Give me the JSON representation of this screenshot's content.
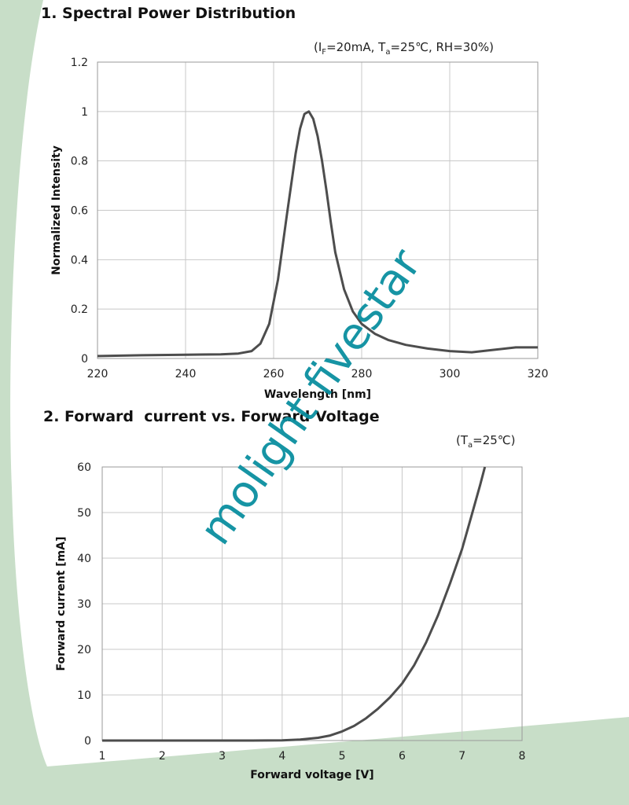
{
  "chart_data": [
    {
      "type": "line",
      "title": "1. Spectral Power Distribution",
      "conditions": {
        "i_label": "I",
        "i_sub": "F",
        "i_val": "=20mA, ",
        "t_label": "T",
        "t_sub": "a",
        "t_val": "=25℃, RH=30%"
      },
      "xlabel": "Wavelength [nm]",
      "ylabel": "Normalized Intensity",
      "xlim": [
        220,
        320
      ],
      "ylim": [
        0,
        1.2
      ],
      "x_ticks": [
        "220",
        "240",
        "260",
        "280",
        "300",
        "320"
      ],
      "y_ticks": [
        "0",
        "0.2",
        "0.4",
        "0.6",
        "0.8",
        "1",
        "1.2"
      ],
      "grid": true,
      "series": [
        {
          "x": [
            220,
            230,
            240,
            248,
            252,
            255,
            257,
            259,
            261,
            263,
            265,
            266,
            267,
            268,
            269,
            270,
            271,
            272,
            273,
            274,
            276,
            278,
            280,
            283,
            286,
            290,
            295,
            300,
            305,
            310,
            315,
            320
          ],
          "y": [
            0.01,
            0.013,
            0.015,
            0.017,
            0.02,
            0.03,
            0.06,
            0.14,
            0.32,
            0.58,
            0.83,
            0.93,
            0.99,
            1.0,
            0.97,
            0.9,
            0.8,
            0.68,
            0.55,
            0.43,
            0.28,
            0.19,
            0.14,
            0.1,
            0.075,
            0.055,
            0.04,
            0.03,
            0.025,
            0.035,
            0.045,
            0.045
          ]
        }
      ]
    },
    {
      "type": "line",
      "title": "2. Forward  current vs. Forward Voltage",
      "conditions": {
        "t_label": "(T",
        "t_sub": "a",
        "t_val": "=25℃)"
      },
      "xlabel": "Forward voltage [V]",
      "ylabel": "Forward current [mA]",
      "xlim": [
        1,
        8
      ],
      "ylim": [
        0,
        60
      ],
      "x_ticks": [
        "1",
        "2",
        "3",
        "4",
        "5",
        "6",
        "7",
        "8"
      ],
      "y_ticks": [
        "0",
        "10",
        "20",
        "30",
        "40",
        "50",
        "60"
      ],
      "grid": true,
      "series": [
        {
          "x": [
            1,
            2,
            3,
            3.5,
            4,
            4.3,
            4.6,
            4.8,
            5.0,
            5.2,
            5.4,
            5.6,
            5.8,
            6.0,
            6.2,
            6.4,
            6.6,
            6.8,
            7.0,
            7.15,
            7.3,
            7.38
          ],
          "y": [
            0,
            0,
            0,
            0,
            0.05,
            0.2,
            0.6,
            1.1,
            2.0,
            3.2,
            4.9,
            7.0,
            9.5,
            12.5,
            16.5,
            21.5,
            27.5,
            34.5,
            42,
            49,
            56,
            60
          ]
        }
      ]
    }
  ],
  "watermark": "molight fivestar"
}
